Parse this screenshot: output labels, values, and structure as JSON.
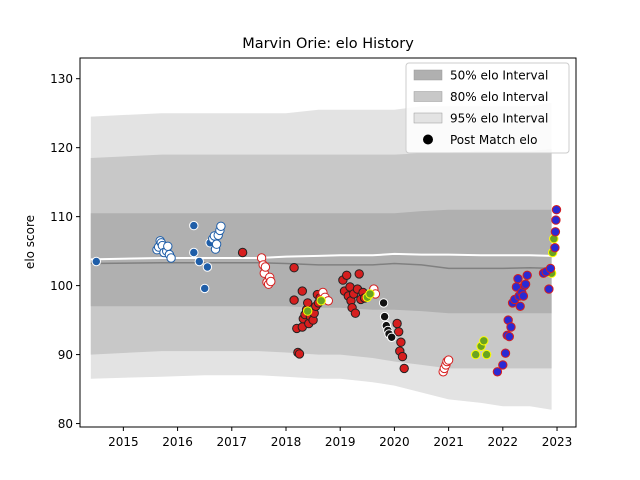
{
  "chart_data": {
    "type": "scatter",
    "title": "Marvin Orie: elo History",
    "xlabel": "",
    "ylabel": "elo score",
    "xlim": [
      2014.2,
      2023.35
    ],
    "ylim": [
      79.5,
      133
    ],
    "x_ticks": [
      2015,
      2016,
      2017,
      2018,
      2019,
      2020,
      2021,
      2022,
      2023
    ],
    "y_ticks": [
      80,
      90,
      100,
      110,
      120,
      130
    ],
    "grid": false,
    "legend_position": "top-right",
    "legend": [
      {
        "label": "50% elo Interval",
        "kind": "patch",
        "color": "#b0b0b0"
      },
      {
        "label": "80% elo Interval",
        "kind": "patch",
        "color": "#c8c8c8"
      },
      {
        "label": "95% elo Interval",
        "kind": "patch",
        "color": "#e3e3e3"
      },
      {
        "label": "Post Match elo",
        "kind": "marker",
        "color": "#000000"
      }
    ],
    "bands": {
      "x": [
        2014.4,
        2015.7,
        2016.5,
        2017.5,
        2018.0,
        2018.6,
        2019.0,
        2019.6,
        2020.0,
        2020.5,
        2021.0,
        2021.6,
        2022.0,
        2022.5,
        2022.9
      ],
      "b95_upper": [
        124.5,
        125.0,
        125.0,
        125.0,
        125.0,
        125.5,
        125.5,
        125.5,
        125.5,
        126.0,
        126.0,
        126.0,
        126.0,
        126.0,
        126.5
      ],
      "b95_lower": [
        86.5,
        86.8,
        87.0,
        87.0,
        86.8,
        86.5,
        86.5,
        86.0,
        85.5,
        84.5,
        83.5,
        83.0,
        82.5,
        82.5,
        82.0
      ],
      "b80_upper": [
        118.5,
        119.0,
        119.0,
        119.0,
        119.0,
        119.0,
        119.0,
        119.0,
        119.0,
        119.2,
        119.3,
        119.5,
        119.5,
        119.5,
        119.8
      ],
      "b80_lower": [
        90.0,
        90.5,
        90.5,
        90.5,
        90.3,
        90.0,
        90.0,
        89.5,
        89.0,
        88.5,
        88.0,
        88.0,
        88.0,
        88.0,
        88.0
      ],
      "b50_upper": [
        110.5,
        110.5,
        110.5,
        110.5,
        110.5,
        110.5,
        110.5,
        110.5,
        110.5,
        110.8,
        111.0,
        111.0,
        111.0,
        111.0,
        111.0
      ],
      "b50_lower": [
        97.0,
        97.0,
        97.0,
        97.0,
        97.0,
        96.8,
        96.8,
        96.5,
        96.5,
        96.3,
        96.0,
        96.0,
        96.0,
        96.0,
        96.0
      ],
      "median": [
        103.2,
        103.3,
        103.3,
        103.3,
        103.2,
        103.0,
        103.0,
        103.0,
        103.2,
        103.0,
        102.5,
        102.5,
        102.5,
        102.6,
        102.5
      ],
      "mean": [
        103.8,
        104.0,
        104.0,
        104.0,
        104.2,
        104.3,
        104.4,
        104.4,
        104.6,
        104.5,
        104.5,
        104.4,
        104.4,
        104.4,
        104.3
      ]
    },
    "series": [
      {
        "fill": "#1f5ea8",
        "edge": "#ffffff",
        "points": [
          [
            2014.5,
            103.5
          ],
          [
            2016.3,
            108.7
          ],
          [
            2016.3,
            104.8
          ],
          [
            2016.4,
            103.5
          ],
          [
            2016.5,
            99.6
          ],
          [
            2016.55,
            102.7
          ],
          [
            2016.6,
            106.2
          ]
        ]
      },
      {
        "fill": "#ffffff",
        "edge": "#1f5ea8",
        "points": [
          [
            2015.62,
            105.2
          ],
          [
            2015.65,
            105.6
          ],
          [
            2015.68,
            106.5
          ],
          [
            2015.7,
            106.2
          ],
          [
            2015.72,
            105.8
          ],
          [
            2015.75,
            104.8
          ],
          [
            2015.8,
            105.0
          ],
          [
            2015.82,
            105.7
          ],
          [
            2015.85,
            104.5
          ],
          [
            2015.88,
            104.0
          ],
          [
            2016.65,
            106.8
          ],
          [
            2016.68,
            107.2
          ],
          [
            2016.7,
            105.3
          ],
          [
            2016.72,
            106.0
          ],
          [
            2016.75,
            107.3
          ],
          [
            2016.78,
            108.0
          ],
          [
            2016.8,
            108.6
          ]
        ]
      },
      {
        "fill": "#d61e1e",
        "edge": "#222222",
        "points": [
          [
            2017.2,
            104.8
          ],
          [
            2018.15,
            102.6
          ],
          [
            2018.15,
            97.9
          ],
          [
            2018.2,
            93.8
          ],
          [
            2018.22,
            90.3
          ],
          [
            2018.25,
            90.1
          ],
          [
            2018.3,
            99.2
          ],
          [
            2018.3,
            94.0
          ],
          [
            2018.32,
            95.2
          ],
          [
            2018.35,
            95.8
          ],
          [
            2018.38,
            96.5
          ],
          [
            2018.4,
            97.5
          ],
          [
            2018.42,
            94.5
          ],
          [
            2018.45,
            95.5
          ],
          [
            2018.5,
            95.0
          ],
          [
            2018.52,
            96.0
          ],
          [
            2018.55,
            97.0
          ],
          [
            2018.58,
            98.7
          ],
          [
            2018.6,
            97.5
          ],
          [
            2018.63,
            98.2
          ],
          [
            2019.05,
            100.8
          ],
          [
            2019.08,
            99.2
          ],
          [
            2019.12,
            101.5
          ],
          [
            2019.15,
            98.5
          ],
          [
            2019.18,
            99.8
          ],
          [
            2019.2,
            97.8
          ],
          [
            2019.22,
            96.8
          ],
          [
            2019.25,
            98.8
          ],
          [
            2019.28,
            96.0
          ],
          [
            2019.32,
            99.5
          ],
          [
            2019.35,
            101.7
          ],
          [
            2019.38,
            98.0
          ],
          [
            2019.42,
            99.0
          ],
          [
            2019.45,
            98.2
          ],
          [
            2020.05,
            94.5
          ],
          [
            2020.08,
            93.3
          ],
          [
            2020.1,
            90.5
          ],
          [
            2020.12,
            91.8
          ],
          [
            2020.15,
            89.7
          ],
          [
            2020.18,
            88.0
          ]
        ]
      },
      {
        "fill": "#ffffff",
        "edge": "#d61e1e",
        "points": [
          [
            2017.55,
            104.0
          ],
          [
            2017.58,
            103.0
          ],
          [
            2017.6,
            101.8
          ],
          [
            2017.62,
            102.7
          ],
          [
            2017.65,
            100.5
          ],
          [
            2017.68,
            100.2
          ],
          [
            2017.7,
            101.2
          ],
          [
            2017.72,
            100.6
          ],
          [
            2018.68,
            99.0
          ],
          [
            2018.72,
            98.3
          ],
          [
            2018.78,
            97.8
          ],
          [
            2019.62,
            99.5
          ],
          [
            2019.65,
            98.8
          ],
          [
            2020.9,
            87.5
          ],
          [
            2020.92,
            88.0
          ],
          [
            2020.95,
            88.5
          ],
          [
            2020.97,
            89.0
          ],
          [
            2021.0,
            89.2
          ]
        ]
      },
      {
        "fill": "#6aa321",
        "edge": "#ffff00",
        "points": [
          [
            2018.4,
            96.3
          ],
          [
            2018.65,
            97.8
          ],
          [
            2019.5,
            98.3
          ],
          [
            2019.55,
            98.8
          ],
          [
            2021.5,
            90.0
          ],
          [
            2021.6,
            91.2
          ],
          [
            2021.65,
            92.0
          ],
          [
            2021.7,
            90.0
          ],
          [
            2022.9,
            101.8
          ],
          [
            2022.92,
            104.8
          ],
          [
            2022.94,
            106.8
          ]
        ]
      },
      {
        "fill": "#111111",
        "edge": "#ffffff",
        "points": [
          [
            2019.8,
            97.5
          ],
          [
            2019.82,
            95.5
          ],
          [
            2019.85,
            94.2
          ],
          [
            2019.88,
            93.5
          ],
          [
            2019.9,
            93.0
          ],
          [
            2019.95,
            92.5
          ]
        ]
      },
      {
        "fill": "#2a2ad4",
        "edge": "#d61e1e",
        "points": [
          [
            2021.9,
            87.5
          ],
          [
            2022.0,
            88.5
          ],
          [
            2022.05,
            90.2
          ],
          [
            2022.08,
            92.8
          ],
          [
            2022.1,
            95.0
          ],
          [
            2022.12,
            92.6
          ],
          [
            2022.15,
            94.0
          ],
          [
            2022.18,
            97.5
          ],
          [
            2022.22,
            98.0
          ],
          [
            2022.25,
            99.8
          ],
          [
            2022.28,
            101.0
          ],
          [
            2022.3,
            98.5
          ],
          [
            2022.32,
            97.0
          ],
          [
            2022.35,
            99.0
          ],
          [
            2022.38,
            98.5
          ],
          [
            2022.4,
            100.0
          ],
          [
            2022.42,
            100.2
          ],
          [
            2022.45,
            101.5
          ],
          [
            2022.75,
            101.8
          ],
          [
            2022.8,
            102.0
          ],
          [
            2022.85,
            99.5
          ],
          [
            2022.88,
            102.5
          ],
          [
            2022.96,
            105.5
          ],
          [
            2022.97,
            107.8
          ],
          [
            2022.98,
            109.5
          ],
          [
            2022.99,
            111.0
          ]
        ]
      }
    ]
  }
}
